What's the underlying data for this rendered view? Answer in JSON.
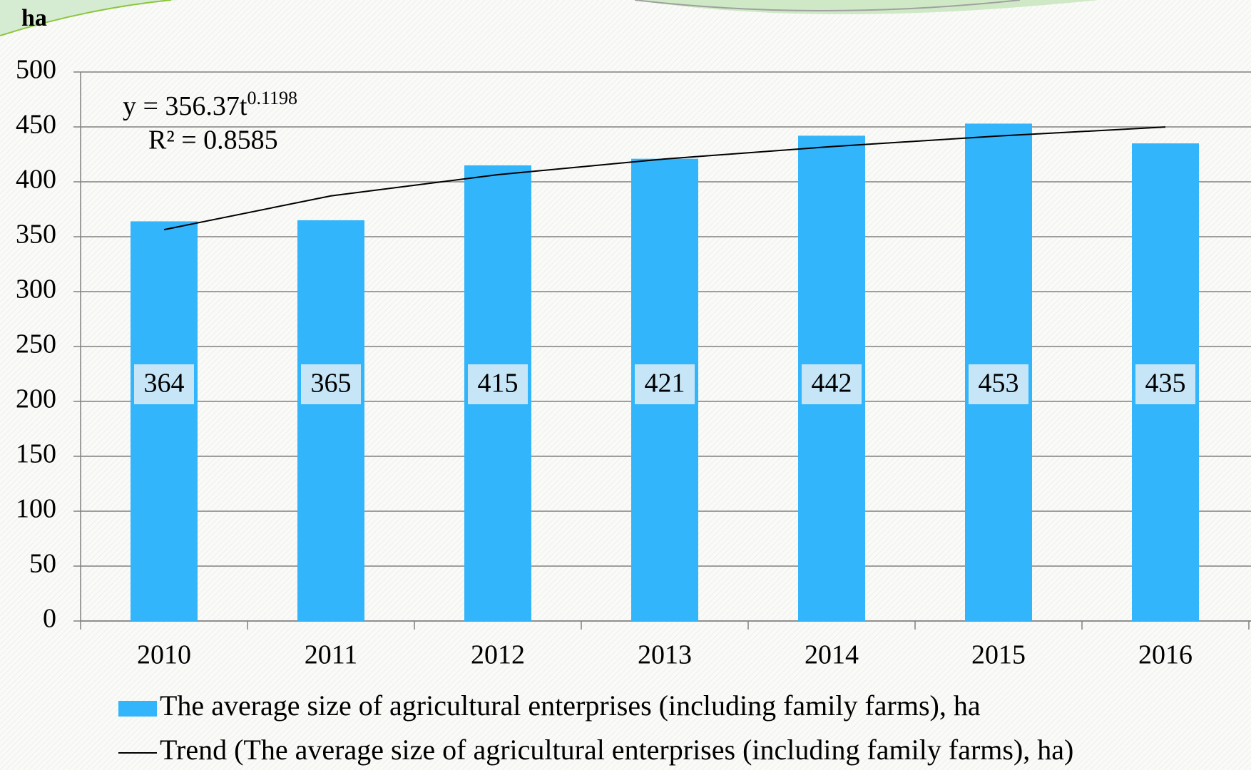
{
  "chart_data": {
    "type": "bar",
    "y_axis_label": "ha",
    "categories": [
      "2010",
      "2011",
      "2012",
      "2013",
      "2014",
      "2015",
      "2016"
    ],
    "series": [
      {
        "name": "The average size of agricultural enterprises (including family farms), ha",
        "color": "#33b5fb",
        "values": [
          364,
          365,
          415,
          421,
          442,
          453,
          435
        ]
      },
      {
        "name": "Trend (The average size of agricultural enterprises (including family farms), ha)",
        "type": "line",
        "color": "#000000",
        "values": [
          356.4,
          387.2,
          406.5,
          420.8,
          432.1,
          441.7,
          449.9
        ]
      }
    ],
    "trend_equation": {
      "base": "y = 356.37t",
      "exponent": "0.1198"
    },
    "r_squared": "R² = 0.8585",
    "ylim": [
      0,
      500
    ],
    "yticks": [
      0,
      50,
      100,
      150,
      200,
      250,
      300,
      350,
      400,
      450,
      500
    ],
    "grid": true
  }
}
